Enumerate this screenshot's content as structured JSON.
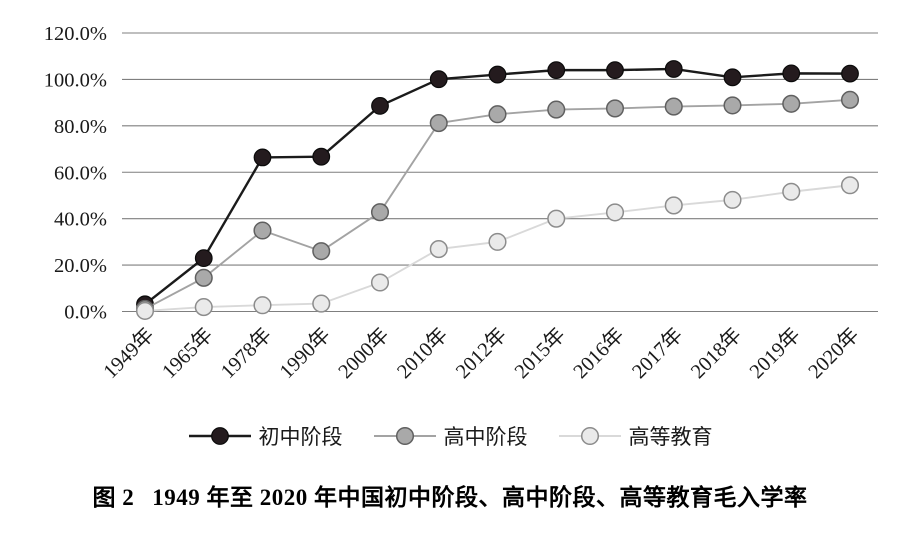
{
  "figure": {
    "label": "图 2",
    "title": "1949 年至 2020 年中国初中阶段、高中阶段、高等教育毛入学率"
  },
  "chart_data": {
    "type": "line",
    "title": "",
    "xlabel": "",
    "ylabel": "",
    "categories": [
      "1949年",
      "1965年",
      "1978年",
      "1990年",
      "2000年",
      "2010年",
      "2012年",
      "2015年",
      "2016年",
      "2017年",
      "2018年",
      "2019年",
      "2020年"
    ],
    "series": [
      {
        "id": "junior-secondary",
        "name": "初中阶段",
        "values": [
          3.1,
          23.0,
          66.4,
          66.7,
          88.6,
          100.1,
          102.1,
          104.0,
          104.0,
          104.5,
          100.9,
          102.6,
          102.5
        ],
        "line_color": "#1b1b1b",
        "line_width": 2.4,
        "marker_fill": "#241b1e",
        "marker_stroke": "#0a0a0a",
        "marker_stroke_width": 1.2
      },
      {
        "id": "senior-secondary",
        "name": "高中阶段",
        "values": [
          1.1,
          14.5,
          34.9,
          26.0,
          42.8,
          81.2,
          85.0,
          87.0,
          87.5,
          88.3,
          88.8,
          89.5,
          91.2
        ],
        "line_color": "#a3a3a3",
        "line_width": 1.9,
        "marker_fill": "#a9a9a9",
        "marker_stroke": "#606060",
        "marker_stroke_width": 1.5
      },
      {
        "id": "higher-education",
        "name": "高等教育",
        "values": [
          0.26,
          1.9,
          2.7,
          3.4,
          12.5,
          26.9,
          30.0,
          40.0,
          42.7,
          45.7,
          48.1,
          51.6,
          54.4
        ],
        "line_color": "#d9d9d9",
        "line_width": 1.9,
        "marker_fill": "#eaeaea",
        "marker_stroke": "#8c8c8c",
        "marker_stroke_width": 1.5
      }
    ],
    "y_ticks": [
      {
        "value": 120,
        "label": "120.0%"
      },
      {
        "value": 100,
        "label": "100.0%"
      },
      {
        "value": 80,
        "label": "80.0%"
      },
      {
        "value": 60,
        "label": "60.0%"
      },
      {
        "value": 40,
        "label": "40.0%"
      },
      {
        "value": 20,
        "label": "20.0%"
      },
      {
        "value": 0,
        "label": "0.0%"
      }
    ],
    "ylim": [
      0,
      120
    ],
    "grid": "horizontal",
    "grid_color": "#7f7f7f",
    "axis_text_color": "#1a1a1a",
    "legend_position": "bottom",
    "marker_radius": 8.3
  }
}
